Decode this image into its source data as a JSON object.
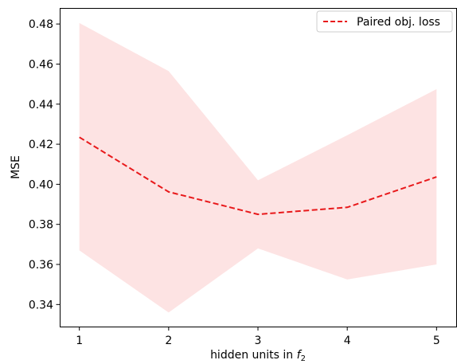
{
  "chart_data": {
    "type": "line",
    "title": "",
    "xlabel": "hidden units in",
    "xlabel_math": "f",
    "xlabel_sub": "2",
    "ylabel": "MSE",
    "x": [
      1,
      2,
      3,
      4,
      5
    ],
    "xticks": [
      "1",
      "2",
      "3",
      "4",
      "5"
    ],
    "yticks": [
      "0.34",
      "0.36",
      "0.38",
      "0.40",
      "0.42",
      "0.44",
      "0.46",
      "0.48"
    ],
    "ytick_values": [
      0.34,
      0.36,
      0.38,
      0.4,
      0.42,
      0.44,
      0.46,
      0.48
    ],
    "xlim": [
      0.78,
      5.22
    ],
    "ylim": [
      0.329,
      0.488
    ],
    "grid": false,
    "legend_position": "top-right",
    "series": [
      {
        "name": "Paired obj. loss",
        "values": [
          0.4235,
          0.3962,
          0.385,
          0.3885,
          0.4037
        ],
        "lower": [
          0.367,
          0.336,
          0.368,
          0.3525,
          0.36
        ],
        "upper": [
          0.4805,
          0.4565,
          0.402,
          0.4245,
          0.4475
        ],
        "color": "#e8191b",
        "band_color": "#fde3e3",
        "line_style": "dashed"
      }
    ]
  }
}
